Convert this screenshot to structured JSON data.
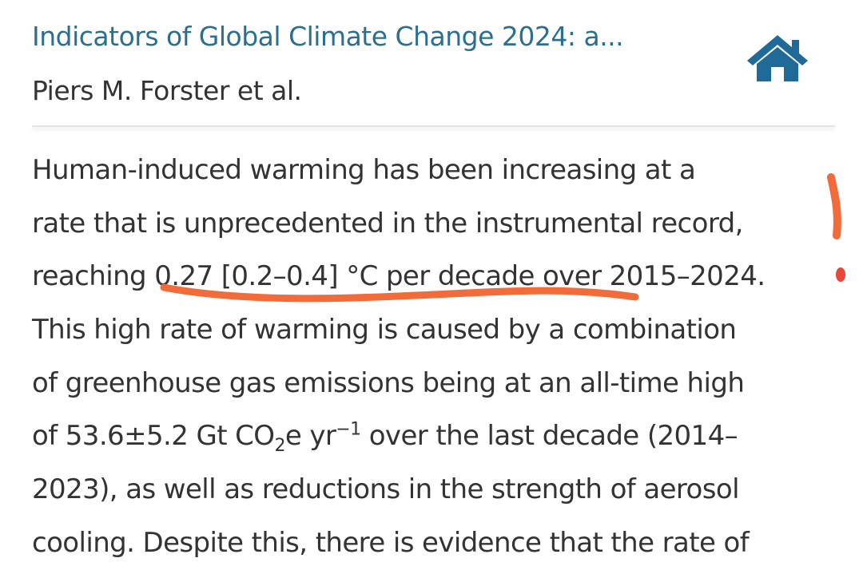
{
  "header": {
    "title": "Indicators of Global Climate Change 2024: a...",
    "authors": "Piers M. Forster et al."
  },
  "paragraph": {
    "lines": [
      [
        "Human-induced warming has been increasing at a"
      ],
      [
        "rate that is unprecedented in the instrumental record,"
      ],
      [
        "reaching 0.27 [0.2–0.4] °C per decade over 2015–2024."
      ],
      [
        "This high rate of warming is caused by a combination"
      ],
      [
        "of greenhouse gas emissions being at an all-time high"
      ],
      [
        "of 53.6±5.2 Gt CO",
        {
          "sub": "2"
        },
        "e yr",
        {
          "sup": "−1"
        },
        " over the last decade (2014–"
      ],
      [
        "2023), as well as reductions in the strength of aerosol"
      ],
      [
        "cooling. Despite this, there is evidence that the rate of"
      ]
    ]
  }
}
